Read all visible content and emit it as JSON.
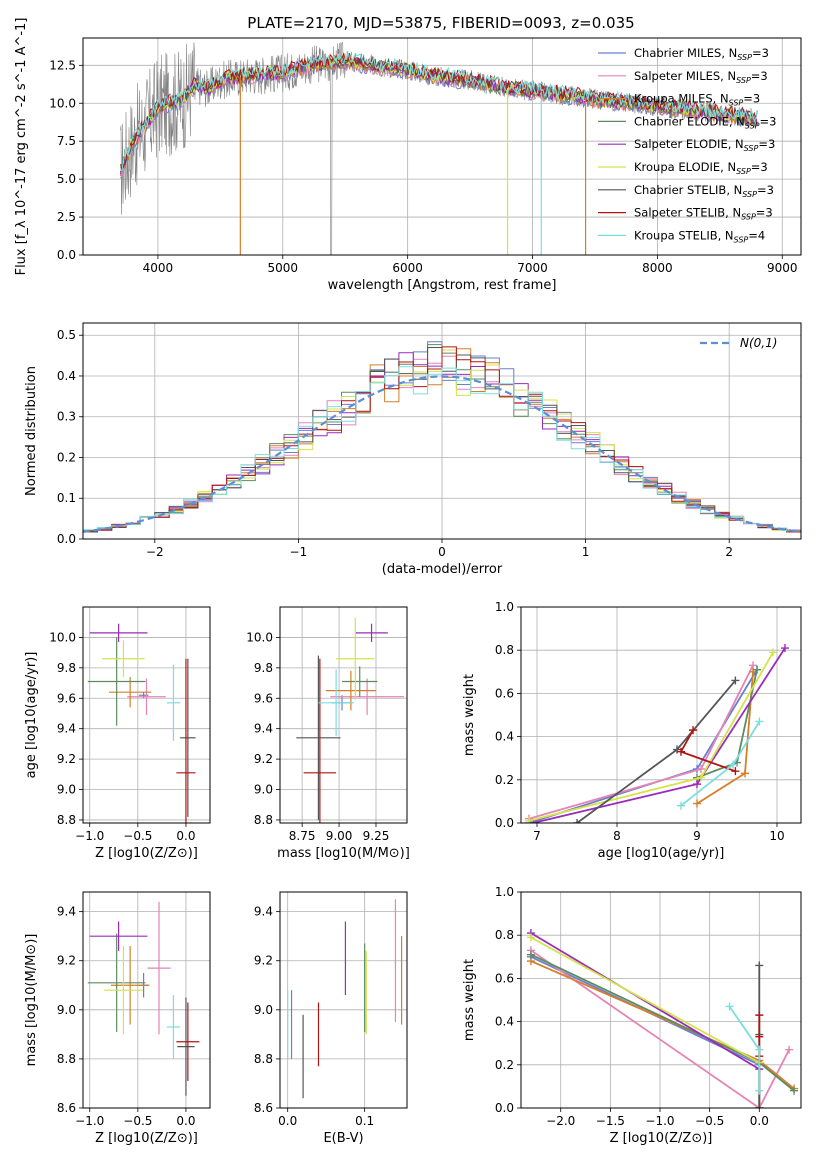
{
  "title": "PLATE=2170, MJD=53875, FIBERID=0093, z=0.035",
  "colors": {
    "Chabrier MILES": "#6a7fd0",
    "Salpeter MILES": "#e684b6",
    "Kroupa MILES": "#d57f2b",
    "Chabrier ELODIE": "#5f8c5f",
    "Salpeter ELODIE": "#9a2bbd",
    "Kroupa ELODIE": "#d4e34a",
    "Chabrier STELIB": "#555555",
    "Salpeter STELIB": "#b01414",
    "Kroupa STELIB": "#7bdde0",
    "data": "#808080",
    "normal": "#5b8fd6"
  },
  "chart_data": [
    {
      "type": "line",
      "panel": "spectrum",
      "xlabel": "wavelength [Angstrom, rest frame]",
      "ylabel": "Flux [f_λ 10^-17 erg cm^-2 s^-1 A^-1]",
      "xlim": [
        3400,
        9150
      ],
      "ylim": [
        0,
        14.3
      ],
      "xticks": [
        4000,
        5000,
        6000,
        7000,
        8000,
        9000
      ],
      "yticks": [
        0.0,
        2.5,
        5.0,
        7.5,
        10.0,
        12.5
      ],
      "legend": "top-right",
      "series": [
        {
          "name": "Chabrier MILES, N_SSP=3"
        },
        {
          "name": "Salpeter MILES, N_SSP=3"
        },
        {
          "name": "Kroupa MILES, N_SSP=3"
        },
        {
          "name": "Chabrier ELODIE, N_SSP=3"
        },
        {
          "name": "Salpeter ELODIE, N_SSP=3"
        },
        {
          "name": "Kroupa ELODIE, N_SSP=3"
        },
        {
          "name": "Chabrier STELIB, N_SSP=3"
        },
        {
          "name": "Salpeter STELIB, N_SSP=3"
        },
        {
          "name": "Kroupa STELIB, N_SSP=4"
        }
      ],
      "model_continuum": {
        "x": [
          3700,
          3800,
          3900,
          4000,
          4100,
          4200,
          4300,
          4400,
          4500,
          4700,
          5000,
          5200,
          5500,
          5800,
          6000,
          6200,
          6500,
          6800,
          7000,
          7200,
          7400,
          7600,
          7800,
          8000,
          8200,
          8400,
          8600,
          8800
        ],
        "y": [
          5.5,
          7.5,
          8.5,
          9.8,
          10.0,
          10.3,
          11.2,
          11.0,
          11.5,
          11.8,
          12.0,
          12.5,
          12.8,
          12.4,
          12.2,
          11.8,
          11.5,
          11.0,
          10.8,
          10.6,
          10.4,
          10.2,
          10.0,
          9.8,
          9.6,
          9.4,
          9.2,
          9.0
        ]
      }
    },
    {
      "type": "histogram",
      "panel": "residuals",
      "xlabel": "(data-model)/error",
      "ylabel": "Normed distribution",
      "xlim": [
        -2.5,
        2.5
      ],
      "ylim": [
        0,
        0.53
      ],
      "xticks": [
        -2,
        -1,
        0,
        1,
        2
      ],
      "yticks": [
        0.0,
        0.1,
        0.2,
        0.3,
        0.4,
        0.5
      ],
      "legend": "top-right",
      "normal_label": "N(0,1)",
      "bin_width": 0.1
    },
    {
      "type": "scatter",
      "panel": "Z-age",
      "xlabel": "Z [log10(Z/Z⊙)]",
      "ylabel": "age [log10(age/yr)]",
      "xlim": [
        -1.07,
        0.25
      ],
      "ylim": [
        8.78,
        10.2
      ],
      "xticks": [
        -1.0,
        -0.5,
        0.0
      ],
      "yticks": [
        8.8,
        9.0,
        9.2,
        9.4,
        9.6,
        9.8,
        10.0
      ],
      "points": [
        {
          "model": "Chabrier MILES",
          "x": -0.44,
          "xerr": 0.05,
          "y": 9.62,
          "yerr": 0.02
        },
        {
          "model": "Salpeter MILES",
          "x": -0.41,
          "xerr": 0.2,
          "y": 9.61,
          "yerr": 0.12
        },
        {
          "model": "Kroupa MILES",
          "x": -0.58,
          "xerr": 0.22,
          "y": 9.64,
          "yerr": 0.1
        },
        {
          "model": "Chabrier ELODIE",
          "x": -0.72,
          "xerr": 0.3,
          "y": 9.71,
          "yerr": 0.29
        },
        {
          "model": "Salpeter ELODIE",
          "x": -0.7,
          "xerr": 0.3,
          "y": 10.03,
          "yerr": 0.06
        },
        {
          "model": "Kroupa ELODIE",
          "x": -0.65,
          "xerr": 0.22,
          "y": 9.86,
          "yerr": 0.12
        },
        {
          "model": "Chabrier STELIB",
          "x": 0.02,
          "xerr": 0.08,
          "y": 9.34,
          "yerr": 0.52
        },
        {
          "model": "Salpeter STELIB",
          "x": 0.0,
          "xerr": 0.1,
          "y": 9.11,
          "yerr": 0.75
        },
        {
          "model": "Kroupa STELIB",
          "x": -0.13,
          "xerr": 0.07,
          "y": 9.57,
          "yerr": 0.25
        }
      ]
    },
    {
      "type": "scatter",
      "panel": "mass-age",
      "xlabel": "mass [log10(M/M⊙)]",
      "ylabel": "",
      "xlim": [
        8.6,
        9.46
      ],
      "ylim": [
        8.78,
        10.2
      ],
      "xticks": [
        8.75,
        9.0,
        9.25
      ],
      "yticks": [
        8.8,
        9.0,
        9.2,
        9.4,
        9.6,
        9.8,
        10.0
      ],
      "points": [
        {
          "model": "Chabrier MILES",
          "x": 9.02,
          "xerr": 0.07,
          "y": 9.57,
          "yerr": 0.05
        },
        {
          "model": "Salpeter MILES",
          "x": 9.19,
          "xerr": 0.25,
          "y": 9.61,
          "yerr": 0.12
        },
        {
          "model": "Kroupa MILES",
          "x": 9.08,
          "xerr": 0.17,
          "y": 9.65,
          "yerr": 0.13
        },
        {
          "model": "Chabrier ELODIE",
          "x": 9.14,
          "xerr": 0.12,
          "y": 9.71,
          "yerr": 0.1
        },
        {
          "model": "Salpeter ELODIE",
          "x": 9.22,
          "xerr": 0.11,
          "y": 10.03,
          "yerr": 0.06
        },
        {
          "model": "Kroupa ELODIE",
          "x": 9.11,
          "xerr": 0.13,
          "y": 9.86,
          "yerr": 0.27
        },
        {
          "model": "Chabrier STELIB",
          "x": 8.86,
          "xerr": 0.15,
          "y": 9.34,
          "yerr": 0.54
        },
        {
          "model": "Salpeter STELIB",
          "x": 8.87,
          "xerr": 0.11,
          "y": 9.11,
          "yerr": 0.75
        },
        {
          "model": "Kroupa STELIB",
          "x": 8.98,
          "xerr": 0.12,
          "y": 9.57,
          "yerr": 0.22
        }
      ]
    },
    {
      "type": "line",
      "panel": "age-massweight",
      "xlabel": "age [log10(age/yr)]",
      "ylabel": "mass weight",
      "xlim": [
        6.8,
        10.3
      ],
      "ylim": [
        0.0,
        1.0
      ],
      "xticks": [
        7,
        8,
        9,
        10
      ],
      "yticks": [
        0.0,
        0.2,
        0.4,
        0.6,
        0.8,
        1.0
      ],
      "series": [
        {
          "model": "Chabrier MILES",
          "x": [
            9.75,
            9.0,
            6.9
          ],
          "y": [
            0.71,
            0.25,
            0.0
          ]
        },
        {
          "model": "Salpeter MILES",
          "x": [
            9.7,
            9.05,
            6.9
          ],
          "y": [
            0.73,
            0.25,
            0.02
          ]
        },
        {
          "model": "Kroupa MILES",
          "x": [
            9.7,
            9.6,
            9.0
          ],
          "y": [
            0.7,
            0.23,
            0.09
          ]
        },
        {
          "model": "Chabrier ELODIE",
          "x": [
            9.75,
            9.5,
            9.0
          ],
          "y": [
            0.71,
            0.28,
            0.21
          ]
        },
        {
          "model": "Salpeter ELODIE",
          "x": [
            10.1,
            9.0,
            6.95
          ],
          "y": [
            0.81,
            0.18,
            0.0
          ]
        },
        {
          "model": "Kroupa ELODIE",
          "x": [
            9.95,
            9.05,
            6.9
          ],
          "y": [
            0.79,
            0.21,
            0.01
          ]
        },
        {
          "model": "Chabrier STELIB",
          "x": [
            9.48,
            8.75,
            7.5
          ],
          "y": [
            0.66,
            0.34,
            0.0
          ]
        },
        {
          "model": "Salpeter STELIB",
          "x": [
            8.95,
            8.8,
            9.48
          ],
          "y": [
            0.43,
            0.33,
            0.24
          ]
        },
        {
          "model": "Kroupa STELIB",
          "x": [
            9.78,
            9.45,
            8.8
          ],
          "y": [
            0.47,
            0.27,
            0.08
          ]
        }
      ]
    },
    {
      "type": "scatter",
      "panel": "Z-mass",
      "xlabel": "Z [log10(Z/Z⊙)]",
      "ylabel": "mass [log10(M/M⊙)]",
      "xlim": [
        -1.07,
        0.25
      ],
      "ylim": [
        8.6,
        9.48
      ],
      "xticks": [
        -1.0,
        -0.5,
        0.0
      ],
      "yticks": [
        8.6,
        8.8,
        9.0,
        9.2,
        9.4
      ],
      "points": [
        {
          "model": "Chabrier MILES",
          "x": -0.44,
          "xerr": 0.05,
          "y": 9.1,
          "yerr": 0.05
        },
        {
          "model": "Salpeter MILES",
          "x": -0.28,
          "xerr": 0.12,
          "y": 9.17,
          "yerr": 0.27
        },
        {
          "model": "Kroupa MILES",
          "x": -0.58,
          "xerr": 0.2,
          "y": 9.1,
          "yerr": 0.16
        },
        {
          "model": "Chabrier ELODIE",
          "x": -0.72,
          "xerr": 0.3,
          "y": 9.11,
          "yerr": 0.2
        },
        {
          "model": "Salpeter ELODIE",
          "x": -0.7,
          "xerr": 0.3,
          "y": 9.3,
          "yerr": 0.06
        },
        {
          "model": "Kroupa ELODIE",
          "x": -0.65,
          "xerr": 0.2,
          "y": 9.08,
          "yerr": 0.18
        },
        {
          "model": "Chabrier STELIB",
          "x": 0.0,
          "xerr": 0.09,
          "y": 8.85,
          "yerr": 0.2
        },
        {
          "model": "Salpeter STELIB",
          "x": 0.02,
          "xerr": 0.12,
          "y": 8.87,
          "yerr": 0.16
        },
        {
          "model": "Kroupa STELIB",
          "x": -0.13,
          "xerr": 0.07,
          "y": 8.93,
          "yerr": 0.13
        }
      ]
    },
    {
      "type": "scatter",
      "panel": "EBV-mass",
      "xlabel": "E(B-V)",
      "ylabel": "",
      "xlim": [
        -0.01,
        0.155
      ],
      "ylim": [
        8.6,
        9.48
      ],
      "xticks": [
        0.0,
        0.1
      ],
      "yticks": [
        8.6,
        8.8,
        9.0,
        9.2,
        9.4
      ],
      "points": [
        {
          "model": "Chabrier MILES",
          "x": 0.005,
          "y": 8.94,
          "yerr": 0.14
        },
        {
          "model": "Salpeter MILES",
          "x": 0.14,
          "y": 9.2,
          "yerr": 0.25
        },
        {
          "model": "Kroupa MILES",
          "x": 0.148,
          "y": 9.12,
          "yerr": 0.18
        },
        {
          "model": "Chabrier ELODIE",
          "x": 0.1,
          "y": 9.09,
          "yerr": 0.18
        },
        {
          "model": "Salpeter ELODIE",
          "x": 0.075,
          "y": 9.21,
          "yerr": 0.15
        },
        {
          "model": "Kroupa ELODIE",
          "x": 0.102,
          "y": 9.07,
          "yerr": 0.17
        },
        {
          "model": "Chabrier STELIB",
          "x": 0.02,
          "y": 8.81,
          "yerr": 0.17
        },
        {
          "model": "Salpeter STELIB",
          "x": 0.04,
          "y": 8.9,
          "yerr": 0.13
        },
        {
          "model": "Kroupa STELIB",
          "x": 0.0,
          "y": 8.94,
          "yerr": 0.14
        }
      ]
    },
    {
      "type": "line",
      "panel": "Z-massweight",
      "xlabel": "Z [log10(Z/Z⊙)]",
      "ylabel": "mass weight",
      "xlim": [
        -2.4,
        0.42
      ],
      "ylim": [
        0.0,
        1.0
      ],
      "xticks": [
        -2.0,
        -1.5,
        -1.0,
        -0.5,
        0.0
      ],
      "yticks": [
        0.0,
        0.2,
        0.4,
        0.6,
        0.8,
        1.0
      ],
      "series": [
        {
          "model": "Chabrier MILES",
          "x": [
            -2.3,
            0.0,
            0.0
          ],
          "y": [
            0.7,
            0.2,
            0.0
          ]
        },
        {
          "model": "Salpeter MILES",
          "x": [
            -2.3,
            0.0,
            0.3
          ],
          "y": [
            0.73,
            0.0,
            0.27
          ]
        },
        {
          "model": "Kroupa MILES",
          "x": [
            -2.3,
            0.0,
            0.35
          ],
          "y": [
            0.68,
            0.22,
            0.09
          ]
        },
        {
          "model": "Chabrier ELODIE",
          "x": [
            -2.3,
            0.0,
            0.35
          ],
          "y": [
            0.71,
            0.21,
            0.08
          ]
        },
        {
          "model": "Salpeter ELODIE",
          "x": [
            -2.3,
            0.0,
            0.0
          ],
          "y": [
            0.81,
            0.18,
            0.0
          ]
        },
        {
          "model": "Kroupa ELODIE",
          "x": [
            -2.3,
            0.0,
            0.0
          ],
          "y": [
            0.79,
            0.21,
            0.0
          ]
        },
        {
          "model": "Chabrier STELIB",
          "x": [
            0.0,
            0.0,
            0.0
          ],
          "y": [
            0.66,
            0.34,
            0.0
          ]
        },
        {
          "model": "Salpeter STELIB",
          "x": [
            0.0,
            0.0,
            0.0
          ],
          "y": [
            0.43,
            0.33,
            0.24
          ]
        },
        {
          "model": "Kroupa STELIB",
          "x": [
            -0.3,
            0.0,
            0.0
          ],
          "y": [
            0.47,
            0.27,
            0.08
          ]
        }
      ]
    }
  ]
}
